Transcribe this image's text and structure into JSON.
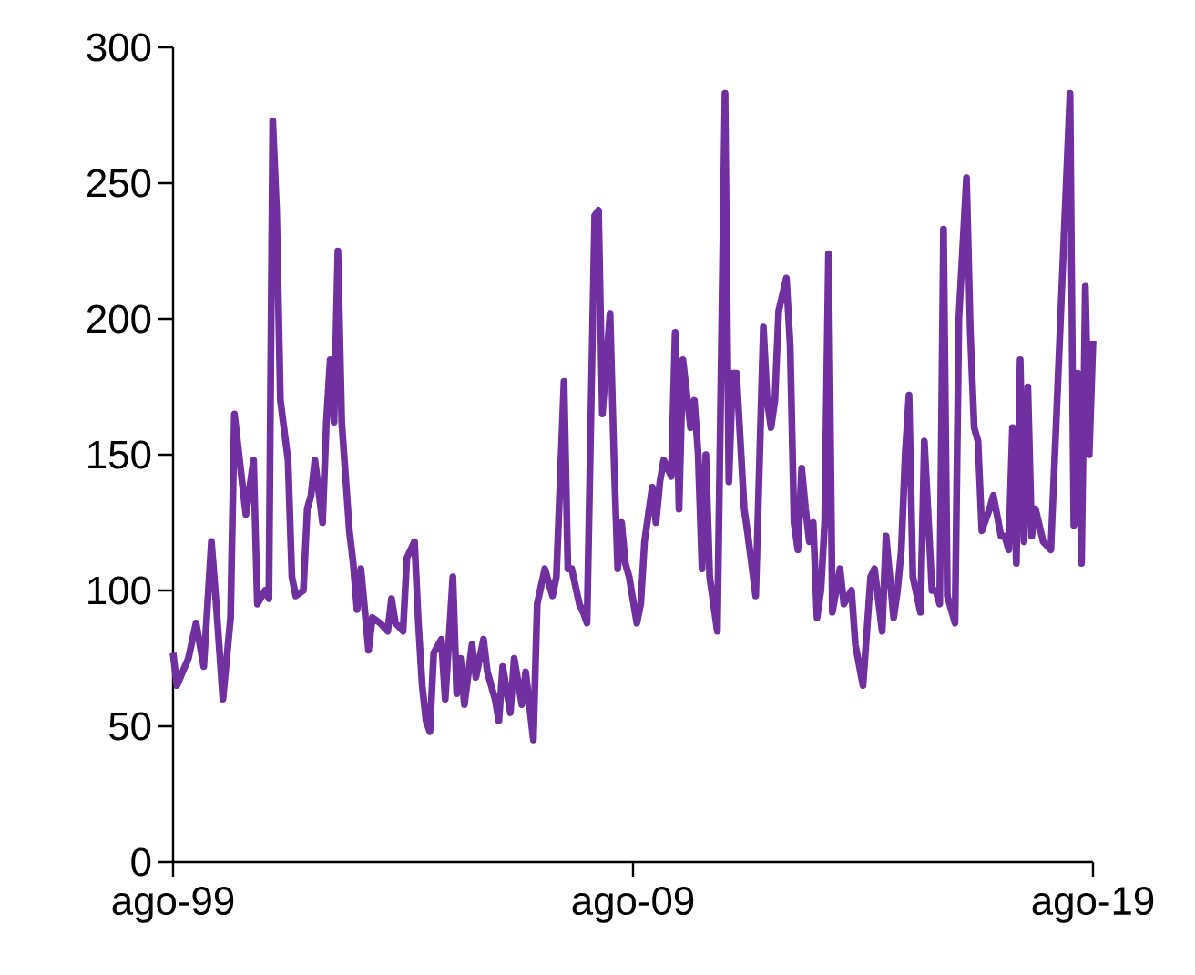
{
  "chart_data": {
    "type": "line",
    "x": [
      "1999-08",
      "1999-09",
      "1999-12",
      "2000-02",
      "2000-04",
      "2000-06",
      "2000-07",
      "2000-09",
      "2000-11",
      "2000-12",
      "2001-02",
      "2001-03",
      "2001-05",
      "2001-06",
      "2001-08",
      "2001-09",
      "2001-10",
      "2001-11",
      "2001-12",
      "2002-02",
      "2002-03",
      "2002-04",
      "2002-06",
      "2002-07",
      "2002-08",
      "2002-09",
      "2002-11",
      "2002-12",
      "2003-01",
      "2003-02",
      "2003-03",
      "2003-04",
      "2003-06",
      "2003-07",
      "2003-08",
      "2003-09",
      "2003-11",
      "2003-12",
      "2004-02",
      "2004-04",
      "2004-05",
      "2004-06",
      "2004-08",
      "2004-09",
      "2004-11",
      "2004-12",
      "2005-01",
      "2005-02",
      "2005-03",
      "2005-04",
      "2005-06",
      "2005-07",
      "2005-09",
      "2005-10",
      "2005-11",
      "2005-12",
      "2006-02",
      "2006-03",
      "2006-05",
      "2006-06",
      "2006-08",
      "2006-09",
      "2006-10",
      "2006-12",
      "2007-01",
      "2007-03",
      "2007-04",
      "2007-06",
      "2007-07",
      "2007-09",
      "2007-11",
      "2007-12",
      "2008-02",
      "2008-03",
      "2008-04",
      "2008-06",
      "2008-07",
      "2008-08",
      "2008-10",
      "2008-11",
      "2008-12",
      "2009-02",
      "2009-03",
      "2009-04",
      "2009-05",
      "2009-06",
      "2009-07",
      "2009-09",
      "2009-10",
      "2009-11",
      "2010-01",
      "2010-02",
      "2010-03",
      "2010-04",
      "2010-06",
      "2010-07",
      "2010-08",
      "2010-09",
      "2010-11",
      "2010-12",
      "2011-01",
      "2011-02",
      "2011-03",
      "2011-04",
      "2011-06",
      "2011-08",
      "2011-09",
      "2011-10",
      "2011-11",
      "2012-01",
      "2012-02",
      "2012-04",
      "2012-06",
      "2012-07",
      "2012-08",
      "2012-09",
      "2012-10",
      "2012-12",
      "2013-01",
      "2013-02",
      "2013-03",
      "2013-04",
      "2013-05",
      "2013-06",
      "2013-07",
      "2013-08",
      "2013-09",
      "2013-10",
      "2013-11",
      "2013-12",
      "2014-02",
      "2014-03",
      "2014-05",
      "2014-06",
      "2014-08",
      "2014-10",
      "2014-11",
      "2015-01",
      "2015-02",
      "2015-04",
      "2015-05",
      "2015-06",
      "2015-07",
      "2015-08",
      "2015-09",
      "2015-11",
      "2015-12",
      "2016-02",
      "2016-03",
      "2016-04",
      "2016-05",
      "2016-06",
      "2016-08",
      "2016-09",
      "2016-11",
      "2016-12",
      "2017-01",
      "2017-02",
      "2017-03",
      "2017-05",
      "2017-06",
      "2017-08",
      "2017-09",
      "2017-10",
      "2017-11",
      "2017-12",
      "2018-01",
      "2018-02",
      "2018-03",
      "2018-04",
      "2018-05",
      "2018-07",
      "2018-09",
      "2019-02",
      "2019-03",
      "2019-04",
      "2019-05",
      "2019-06",
      "2019-07",
      "2019-08"
    ],
    "values": [
      77,
      65,
      75,
      88,
      72,
      118,
      100,
      60,
      90,
      165,
      140,
      128,
      148,
      95,
      100,
      97,
      273,
      240,
      170,
      148,
      105,
      98,
      100,
      130,
      135,
      148,
      125,
      162,
      185,
      162,
      225,
      162,
      122,
      110,
      93,
      108,
      78,
      90,
      88,
      85,
      97,
      88,
      85,
      112,
      118,
      88,
      65,
      52,
      48,
      77,
      82,
      60,
      105,
      62,
      75,
      58,
      80,
      68,
      82,
      70,
      60,
      52,
      72,
      55,
      75,
      58,
      70,
      45,
      95,
      108,
      98,
      105,
      177,
      108,
      108,
      95,
      92,
      88,
      238,
      240,
      165,
      202,
      150,
      108,
      125,
      110,
      105,
      88,
      95,
      118,
      138,
      125,
      140,
      148,
      142,
      195,
      130,
      185,
      160,
      170,
      150,
      108,
      150,
      105,
      85,
      283,
      140,
      180,
      180,
      130,
      120,
      98,
      197,
      170,
      160,
      170,
      203,
      215,
      190,
      125,
      115,
      145,
      130,
      118,
      125,
      90,
      100,
      125,
      224,
      92,
      108,
      95,
      100,
      80,
      65,
      105,
      108,
      85,
      120,
      90,
      100,
      115,
      150,
      172,
      105,
      92,
      155,
      100,
      100,
      95,
      233,
      98,
      88,
      200,
      252,
      195,
      160,
      155,
      122,
      130,
      135,
      120,
      120,
      115,
      160,
      110,
      185,
      118,
      175,
      120,
      130,
      118,
      115,
      283,
      124,
      180,
      110,
      212,
      150,
      192
    ],
    "color": "#7030a0",
    "line_style": "solid",
    "marker": "none",
    "xlim": [
      "1999-08",
      "2019-08"
    ],
    "xticks": [
      {
        "value": "1999-08",
        "label": "ago-99"
      },
      {
        "value": "2009-08",
        "label": "ago-09"
      },
      {
        "value": "2019-08",
        "label": "ago-19"
      }
    ],
    "ylim": [
      0,
      300
    ],
    "yticks": [
      0,
      50,
      100,
      150,
      200,
      250,
      300
    ]
  }
}
